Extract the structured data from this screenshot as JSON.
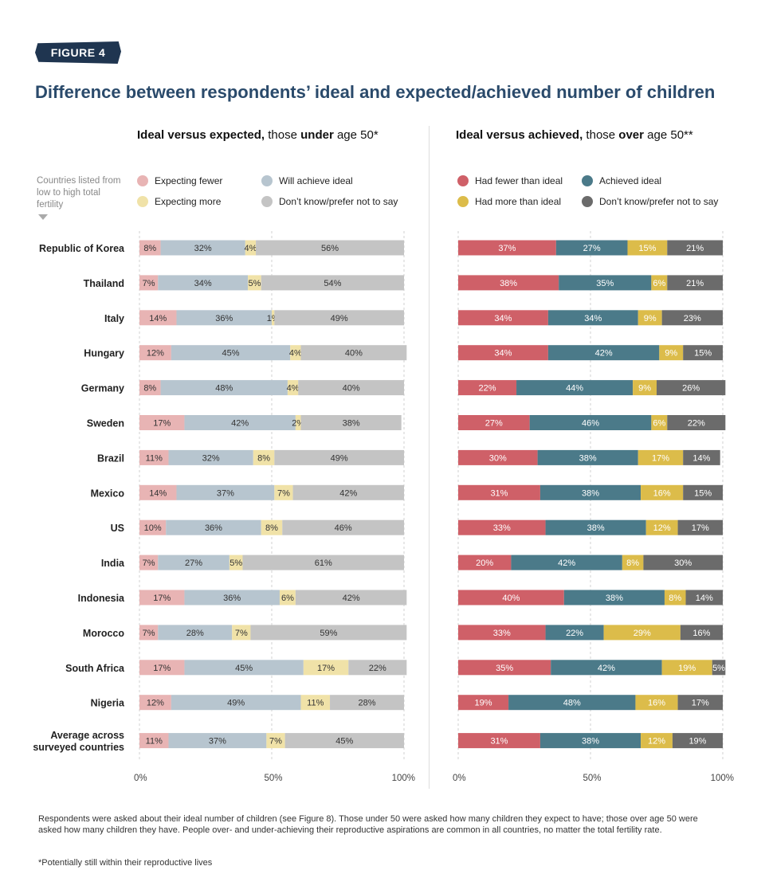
{
  "figure_label": "FIGURE 4",
  "title": "Difference between respondents’ ideal and expected/achieved number of children",
  "left_panel": {
    "heading_bold": "Ideal versus expected,",
    "heading_mid": " those ",
    "heading_bold2": "under",
    "heading_end": " age 50*"
  },
  "right_panel": {
    "heading_bold": "Ideal versus achieved,",
    "heading_mid": " those ",
    "heading_bold2": "over",
    "heading_end": " age 50**"
  },
  "sort_note": "Countries listed from low to high total fertility",
  "left_legend": [
    {
      "label": "Expecting fewer",
      "color": "#e8b4b4"
    },
    {
      "label": "Will achieve ideal",
      "color": "#b7c5cf"
    },
    {
      "label": "Expecting more",
      "color": "#f0e2a8"
    },
    {
      "label": "Don’t know/prefer not to say",
      "color": "#c4c4c4"
    }
  ],
  "right_legend": [
    {
      "label": "Had fewer than ideal",
      "color": "#cf6068"
    },
    {
      "label": "Achieved ideal",
      "color": "#4b7a89"
    },
    {
      "label": "Had more than ideal",
      "color": "#dcbc4a"
    },
    {
      "label": "Don’t know/prefer not to say",
      "color": "#6b6b6b"
    }
  ],
  "chart_data": [
    {
      "type": "bar",
      "orientation": "horizontal-stacked-100",
      "title": "Ideal versus expected, those under age 50*",
      "categories": [
        "Republic of Korea",
        "Thailand",
        "Italy",
        "Hungary",
        "Germany",
        "Sweden",
        "Brazil",
        "Mexico",
        "US",
        "India",
        "Indonesia",
        "Morocco",
        "South Africa",
        "Nigeria",
        "Average across surveyed countries"
      ],
      "series": [
        {
          "name": "Expecting fewer",
          "color": "#e8b4b4",
          "values": [
            8,
            7,
            14,
            12,
            8,
            17,
            11,
            14,
            10,
            7,
            17,
            7,
            17,
            12,
            11
          ]
        },
        {
          "name": "Will achieve ideal",
          "color": "#b7c5cf",
          "values": [
            32,
            34,
            36,
            45,
            48,
            42,
            32,
            37,
            36,
            27,
            36,
            28,
            45,
            49,
            37
          ]
        },
        {
          "name": "Expecting more",
          "color": "#f0e2a8",
          "values": [
            4,
            5,
            1,
            4,
            4,
            2,
            8,
            7,
            8,
            5,
            6,
            7,
            17,
            11,
            7
          ]
        },
        {
          "name": "Don’t know/prefer not to say",
          "color": "#c4c4c4",
          "values": [
            56,
            54,
            49,
            40,
            40,
            38,
            49,
            42,
            46,
            61,
            42,
            59,
            22,
            28,
            45
          ]
        }
      ],
      "ticks": [
        "0%",
        "50%",
        "100%"
      ],
      "label_color": "#333333"
    },
    {
      "type": "bar",
      "orientation": "horizontal-stacked-100",
      "title": "Ideal versus achieved, those over age 50**",
      "categories": [
        "Republic of Korea",
        "Thailand",
        "Italy",
        "Hungary",
        "Germany",
        "Sweden",
        "Brazil",
        "Mexico",
        "US",
        "India",
        "Indonesia",
        "Morocco",
        "South Africa",
        "Nigeria",
        "Average across surveyed countries"
      ],
      "series": [
        {
          "name": "Had fewer than ideal",
          "color": "#cf6068",
          "values": [
            37,
            38,
            34,
            34,
            22,
            27,
            30,
            31,
            33,
            20,
            40,
            33,
            35,
            19,
            31
          ]
        },
        {
          "name": "Achieved ideal",
          "color": "#4b7a89",
          "values": [
            27,
            35,
            34,
            42,
            44,
            46,
            38,
            38,
            38,
            42,
            38,
            22,
            42,
            48,
            38
          ]
        },
        {
          "name": "Had more than ideal",
          "color": "#dcbc4a",
          "values": [
            15,
            6,
            9,
            9,
            9,
            6,
            17,
            16,
            12,
            8,
            8,
            29,
            19,
            16,
            12
          ]
        },
        {
          "name": "Don’t know/prefer not to say",
          "color": "#6b6b6b",
          "values": [
            21,
            21,
            23,
            15,
            26,
            22,
            14,
            15,
            17,
            30,
            14,
            16,
            5,
            17,
            19
          ]
        }
      ],
      "ticks": [
        "0%",
        "50%",
        "100%"
      ],
      "label_color": "#ffffff"
    }
  ],
  "footnote_main": "Respondents were asked about their ideal number of children (see Figure 8). Those under 50 were asked how many children they expect to have; those over age 50 were asked how many children they have. People over- and under-achieving their reproductive aspirations are common in all countries, no matter the total fertility rate.",
  "footnote_star": "*Potentially still within their reproductive lives"
}
